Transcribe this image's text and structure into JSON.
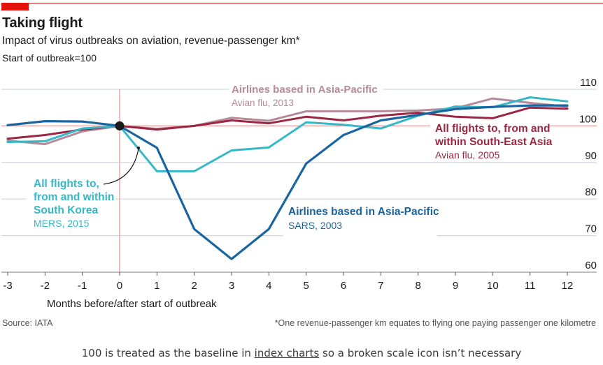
{
  "header": {
    "title": "Taking flight",
    "subtitle": "Impact of virus outbreaks on aviation, revenue-passenger km*",
    "note": "Start of outbreak=100"
  },
  "footer": {
    "source": "Source: IATA",
    "footnote": "*One revenue-passenger km equates to flying one paying passenger one kilometre"
  },
  "caption": {
    "before": "100 is treated as the baseline in ",
    "link": "index charts",
    "after": " so a broken scale icon isn’t necessary"
  },
  "colors": {
    "brand_red": "#e3120b",
    "baseline": "#e8a9a6",
    "grid": "#cfd6df",
    "sars": "#1a64a0",
    "mers": "#35b8c8",
    "avian2005": "#9b2743",
    "avian2013": "#b68a9b"
  },
  "chart_data": {
    "type": "line",
    "title": "Taking flight",
    "subtitle": "Impact of virus outbreaks on aviation, revenue-passenger km*",
    "xlabel": "Months before/after start of outbreak",
    "ylabel": "Start of outbreak=100",
    "x": [
      -3,
      -2,
      -1,
      0,
      1,
      2,
      3,
      4,
      5,
      6,
      7,
      8,
      9,
      10,
      11,
      12
    ],
    "xticks": [
      "-3",
      "-2",
      "-1",
      "0",
      "1",
      "2",
      "3",
      "4",
      "5",
      "6",
      "7",
      "8",
      "9",
      "10",
      "11",
      "12"
    ],
    "yticks": [
      "110",
      "100",
      "90",
      "80",
      "70",
      "60"
    ],
    "ylim": [
      60,
      110
    ],
    "xlim": [
      -3,
      12
    ],
    "grid": true,
    "baseline": 100,
    "series": [
      {
        "key": "avian2013",
        "name": "Airlines based in Asia-Pacific",
        "event": "Avian flu, 2013",
        "values": [
          96,
          95,
          98.5,
          100,
          99.2,
          100,
          102.2,
          101.4,
          104,
          104,
          104,
          104.2,
          104.8,
          107.5,
          106.3,
          105.3
        ]
      },
      {
        "key": "avian2005",
        "name": "All flights to, from and within South-East Asia",
        "event": "Avian flu, 2005",
        "values": [
          96.5,
          97.5,
          99,
          100,
          99,
          100,
          101.5,
          100.7,
          102.5,
          101.5,
          102.8,
          103.6,
          102.5,
          102.1,
          105,
          104.7
        ]
      },
      {
        "key": "mers",
        "name": "All flights to, from and within South Korea",
        "event": "MERS, 2015",
        "values": [
          95.6,
          95.8,
          99.3,
          100,
          87.6,
          87.6,
          93.3,
          94.1,
          101,
          100.3,
          99.3,
          102.8,
          105.3,
          105.1,
          107.8,
          106.7
        ]
      },
      {
        "key": "sars",
        "name": "Airlines based in Asia-Pacific",
        "event": "SARS, 2003",
        "values": [
          100.2,
          101.3,
          101.2,
          100,
          94,
          71.8,
          63.6,
          71.8,
          89.7,
          97.5,
          101.5,
          103,
          104.6,
          105.2,
          105.6,
          105.6
        ]
      }
    ],
    "annotations": [
      {
        "series": "avian2013",
        "lines": [
          "Airlines based in Asia-Pacific",
          "Avian flu, 2013"
        ]
      },
      {
        "series": "avian2005",
        "lines": [
          "All flights to, from and",
          "within South-East Asia",
          "Avian flu, 2005"
        ]
      },
      {
        "series": "mers",
        "lines": [
          "All flights to,",
          "from and within",
          "South Korea",
          "MERS, 2015"
        ]
      },
      {
        "series": "sars",
        "lines": [
          "Airlines based in Asia-Pacific",
          "SARS, 2003"
        ]
      }
    ]
  }
}
